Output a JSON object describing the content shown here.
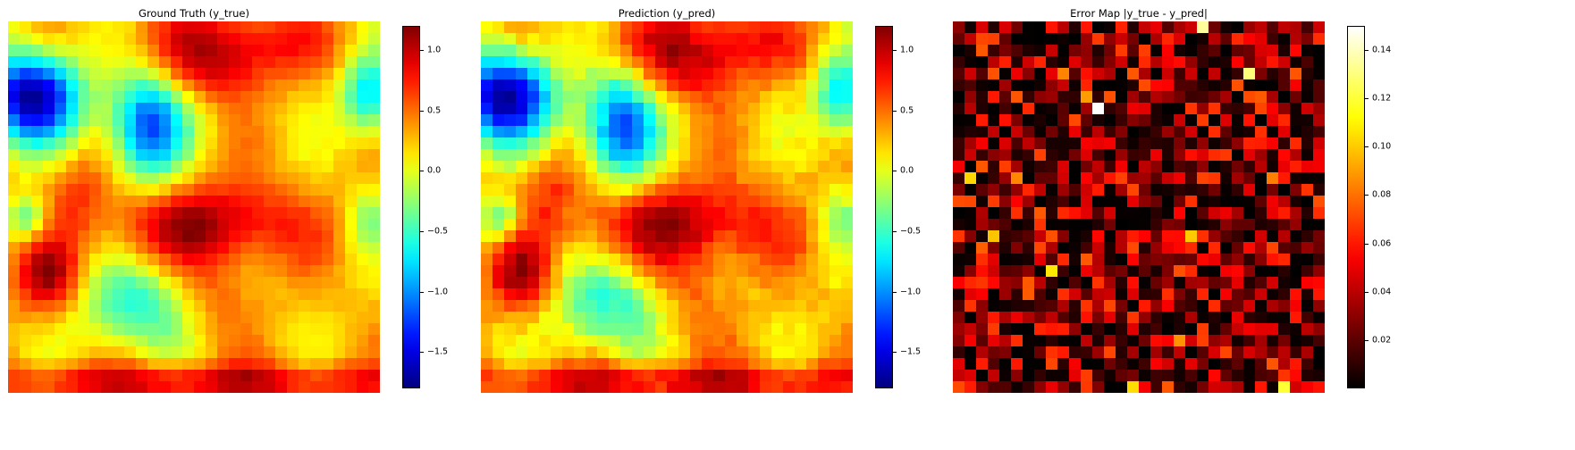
{
  "chart_data": [
    {
      "type": "heatmap",
      "title": "Ground Truth (y_true)",
      "grid": false,
      "axes": "off",
      "rows": 32,
      "cols": 32,
      "colormap": "jet",
      "vmin": -1.8,
      "vmax": 1.2,
      "colorbar_ticks": [
        1.0,
        0.5,
        0.0,
        -0.5,
        -1.0,
        -1.5
      ],
      "colorbar_tick_labels": [
        "1.0",
        "0.5",
        "0.0",
        "−0.5",
        "−1.0",
        "−1.5"
      ],
      "field": "smooth_wave_field"
    },
    {
      "type": "heatmap",
      "title": "Prediction (y_pred)",
      "grid": false,
      "axes": "off",
      "rows": 32,
      "cols": 32,
      "colormap": "jet",
      "vmin": -1.8,
      "vmax": 1.2,
      "colorbar_ticks": [
        1.0,
        0.5,
        0.0,
        -0.5,
        -1.0,
        -1.5
      ],
      "colorbar_tick_labels": [
        "1.0",
        "0.5",
        "0.0",
        "−0.5",
        "−1.0",
        "−1.5"
      ],
      "field": "smooth_wave_field_plus_small_noise"
    },
    {
      "type": "heatmap",
      "title": "Error Map |y_true - y_pred|",
      "grid": false,
      "axes": "off",
      "rows": 32,
      "cols": 32,
      "colormap": "hot",
      "vmin": 0.0,
      "vmax": 0.15,
      "colorbar_ticks": [
        0.14,
        0.12,
        0.1,
        0.08,
        0.06,
        0.04,
        0.02
      ],
      "colorbar_tick_labels": [
        "0.14",
        "0.12",
        "0.10",
        "0.08",
        "0.06",
        "0.04",
        "0.02"
      ],
      "field": "absolute_error"
    }
  ]
}
